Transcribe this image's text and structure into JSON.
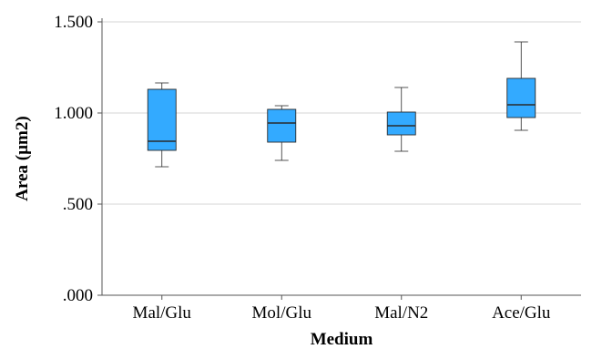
{
  "chart_data": {
    "type": "boxplot",
    "xlabel": "Medium",
    "ylabel": "Area (µm2)",
    "ylim": [
      0.0,
      1.5
    ],
    "yticks": [
      0.0,
      0.5,
      1.0,
      1.5
    ],
    "ytick_labels": [
      ".000",
      ".500",
      "1.000",
      "1.500"
    ],
    "grid": true,
    "categories": [
      "Mal/Glu",
      "Mol/Glu",
      "Mal/N2",
      "Ace/Glu"
    ],
    "boxes": [
      {
        "min": 0.705,
        "q1": 0.795,
        "median": 0.845,
        "q3": 1.13,
        "max": 1.165
      },
      {
        "min": 0.74,
        "q1": 0.84,
        "median": 0.945,
        "q3": 1.02,
        "max": 1.04
      },
      {
        "min": 0.79,
        "q1": 0.88,
        "median": 0.93,
        "q3": 1.005,
        "max": 1.14
      },
      {
        "min": 0.905,
        "q1": 0.975,
        "median": 1.045,
        "q3": 1.19,
        "max": 1.39
      }
    ],
    "colors": {
      "box_fill": "#33AAFF",
      "box_stroke": "#2B2B2B",
      "grid": "#D6D6D6",
      "axis": "#555555"
    }
  }
}
